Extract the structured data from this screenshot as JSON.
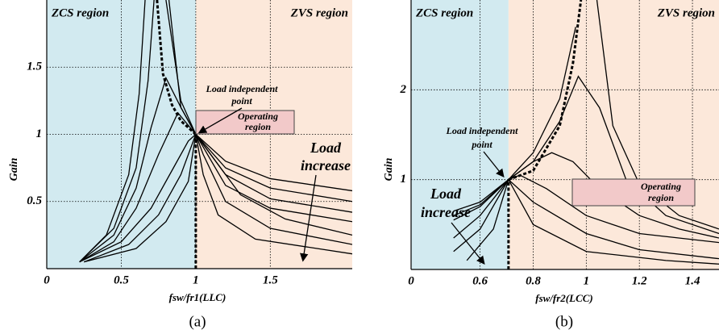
{
  "chart_data": [
    {
      "type": "line",
      "ylabel": "Gain",
      "xlabel": "fsw/fr1(LLC)",
      "caption": "(a)",
      "zcs_label": "ZCS region",
      "zvs_label": "ZVS region",
      "boundary": 1,
      "zcs_color": "#d2eaf0",
      "zvs_color": "#fce8da",
      "point_label": [
        "Load independent",
        "point"
      ],
      "operating_label": [
        "Operating",
        "region"
      ],
      "load_label": [
        "Load",
        "increase"
      ],
      "xlim": [
        0,
        2.05
      ],
      "ylim": [
        0,
        2.0
      ],
      "xticks": [
        0,
        0.5,
        1,
        1.5
      ],
      "yticks": [
        0.5,
        1,
        1.5
      ],
      "grid": true,
      "series": [
        {
          "color": "#000",
          "x": [
            0.22,
            0.4,
            0.55,
            0.62,
            0.66,
            0.76,
            0.8,
            0.9,
            1,
            1.2,
            1.5,
            2.05
          ],
          "values": [
            0.05,
            0.25,
            0.7,
            1.3,
            2.0,
            null,
            2.0,
            1.25,
            1,
            0.8,
            0.67,
            0.58
          ]
        },
        {
          "color": "#000",
          "x": [
            0.22,
            0.45,
            0.6,
            0.68,
            0.72,
            0.78,
            0.82,
            0.9,
            1,
            1.2,
            1.5,
            2.05
          ],
          "values": [
            0.05,
            0.3,
            0.75,
            1.4,
            2.0,
            null,
            2.0,
            1.2,
            1,
            0.75,
            0.6,
            0.5
          ]
        },
        {
          "color": "#000",
          "x": [
            0.22,
            0.45,
            0.6,
            0.7,
            0.8,
            0.9,
            1,
            1.2,
            1.5,
            2.05
          ],
          "values": [
            0.05,
            0.25,
            0.6,
            1.05,
            1.42,
            1.2,
            1,
            0.7,
            0.52,
            0.42
          ]
        },
        {
          "color": "#000",
          "x": [
            0.22,
            0.45,
            0.6,
            0.75,
            0.88,
            1,
            1.2,
            1.5,
            2.05
          ],
          "values": [
            0.05,
            0.2,
            0.45,
            0.85,
            1.16,
            1,
            0.62,
            0.45,
            0.35
          ]
        },
        {
          "color": "#000",
          "x": [
            0.22,
            0.5,
            0.7,
            0.85,
            0.95,
            1,
            1.1,
            1.3,
            1.6,
            2.05
          ],
          "values": [
            0.05,
            0.2,
            0.45,
            0.75,
            0.95,
            1,
            0.85,
            0.55,
            0.37,
            0.25
          ]
        },
        {
          "color": "#000",
          "x": [
            0.25,
            0.55,
            0.75,
            0.9,
            1,
            1.05,
            1.2,
            1.5,
            2.05
          ],
          "values": [
            0.05,
            0.18,
            0.4,
            0.7,
            1,
            0.85,
            0.5,
            0.3,
            0.18
          ]
        },
        {
          "color": "#000",
          "x": [
            0.25,
            0.6,
            0.8,
            0.95,
            1,
            1.05,
            1.15,
            1.4,
            2.05
          ],
          "values": [
            0.05,
            0.15,
            0.35,
            0.65,
            1,
            0.7,
            0.4,
            0.22,
            0.11
          ]
        },
        {
          "color": "#000",
          "dashed": true,
          "x": [
            0.74,
            0.78,
            0.84,
            0.9,
            1
          ],
          "values": [
            2,
            1.45,
            1.22,
            1.1,
            1
          ]
        },
        {
          "color": "#000",
          "dashed": true,
          "x": [
            1,
            1
          ],
          "values": [
            0,
            1
          ]
        }
      ]
    },
    {
      "type": "line",
      "ylabel": "Gain",
      "xlabel": "fsw/fr2(LCC)",
      "caption": "(b)",
      "zcs_label": "ZCS region",
      "zvs_label": "ZVS region",
      "boundary": 0.707,
      "zcs_color": "#d2eaf0",
      "zvs_color": "#fce8da",
      "point_label": [
        "Load independent",
        "point"
      ],
      "operating_label": [
        "Operating",
        "region"
      ],
      "load_label": [
        "Load",
        "increase"
      ],
      "xlim": [
        0.34,
        1.5
      ],
      "ylim": [
        0,
        3.0
      ],
      "xticks": [
        {
          "value": 0.34,
          "label": "0"
        },
        0.6,
        0.8,
        1,
        1.2,
        1.4
      ],
      "yticks": [
        1,
        2
      ],
      "grid": true,
      "series": [
        {
          "color": "#000",
          "x": [
            0.5,
            0.6,
            0.707,
            0.8,
            0.9,
            0.96,
            1.0,
            1.04,
            1.1,
            1.2,
            1.35,
            1.5
          ],
          "values": [
            0.65,
            0.75,
            1,
            1.3,
            1.9,
            2.7,
            null,
            3,
            1.6,
            0.95,
            0.6,
            0.45
          ]
        },
        {
          "color": "#000",
          "x": [
            0.5,
            0.6,
            0.707,
            0.8,
            0.9,
            0.97,
            1.05,
            1.15,
            1.3,
            1.5
          ],
          "values": [
            0.6,
            0.72,
            1,
            1.2,
            1.65,
            2.15,
            1.8,
            1.0,
            0.6,
            0.4
          ]
        },
        {
          "color": "#000",
          "x": [
            0.5,
            0.6,
            0.707,
            0.8,
            0.87,
            0.95,
            1.05,
            1.2,
            1.35,
            1.5
          ],
          "values": [
            0.55,
            0.7,
            1,
            1.2,
            1.3,
            1.2,
            0.9,
            0.6,
            0.45,
            0.35
          ]
        },
        {
          "color": "#000",
          "x": [
            0.5,
            0.6,
            0.707,
            0.75,
            0.85,
            1.0,
            1.2,
            1.5
          ],
          "values": [
            0.35,
            0.6,
            1,
            1.05,
            0.9,
            0.6,
            0.4,
            0.3
          ]
        },
        {
          "color": "#000",
          "x": [
            0.5,
            0.6,
            0.707,
            0.8,
            1.0,
            1.2,
            1.5
          ],
          "values": [
            0.2,
            0.45,
            1,
            0.75,
            0.4,
            0.22,
            0.12
          ]
        },
        {
          "color": "#000",
          "x": [
            0.55,
            0.65,
            0.707,
            0.8,
            1.0,
            1.3,
            1.5
          ],
          "values": [
            0.1,
            0.45,
            1,
            0.5,
            0.2,
            0.1,
            0.06
          ]
        },
        {
          "color": "#000",
          "dashed": true,
          "x": [
            0.707,
            0.8,
            0.9,
            0.95,
            0.98
          ],
          "values": [
            1,
            1.1,
            1.6,
            2.3,
            3
          ]
        },
        {
          "color": "#000",
          "dashed": true,
          "x": [
            0.707,
            0.707
          ],
          "values": [
            0,
            1
          ]
        }
      ]
    }
  ]
}
